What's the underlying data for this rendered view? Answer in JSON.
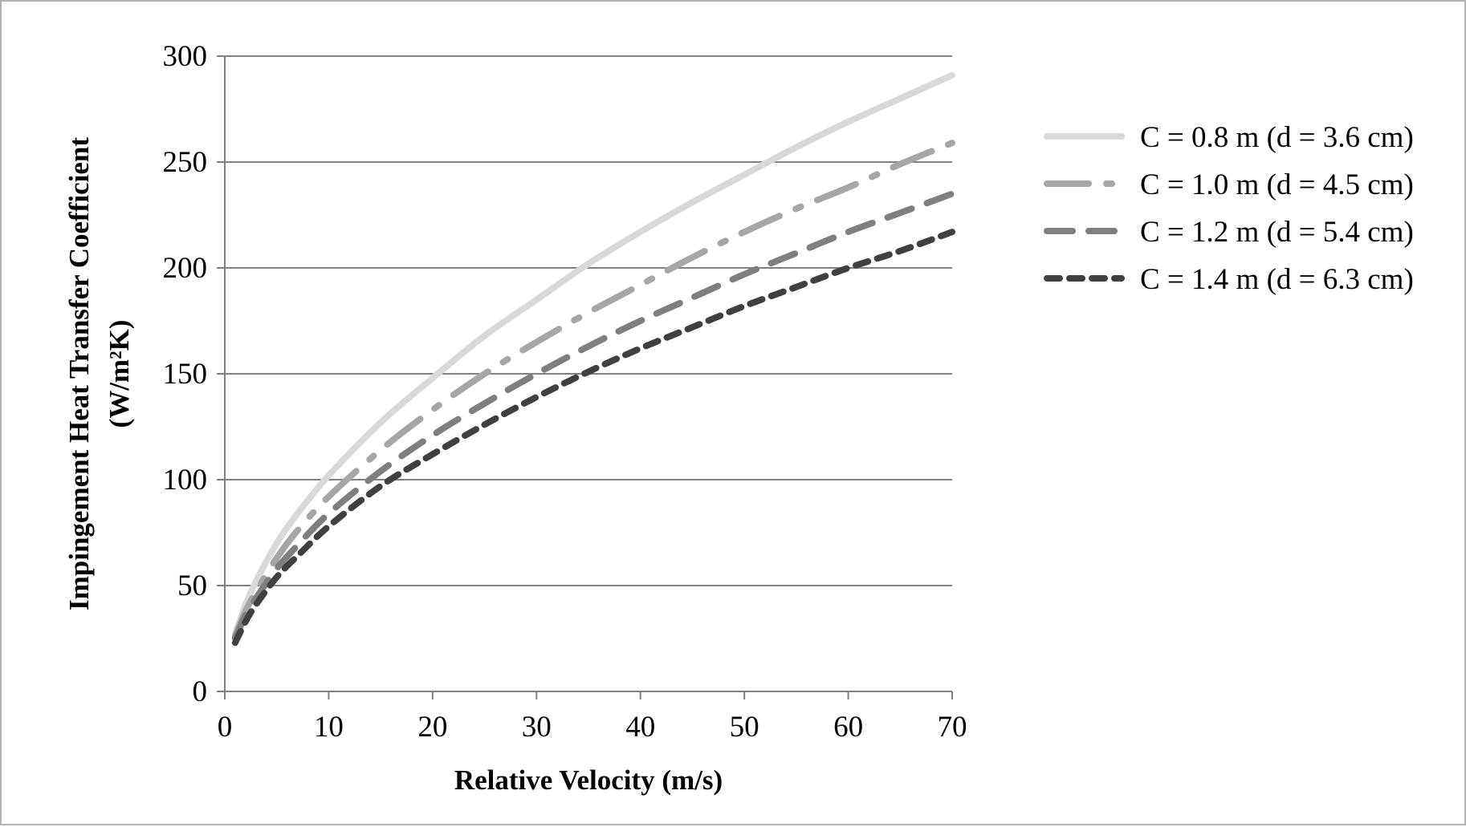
{
  "chart_data": {
    "type": "line",
    "title": "",
    "xlabel": "Relative Velocity (m/s)",
    "ylabel_line1": "Impingement Heat Transfer Coefficient",
    "ylabel_line2": "(W/m²K)",
    "xlim": [
      0,
      70
    ],
    "ylim": [
      0,
      300
    ],
    "xticks": [
      "0",
      "10",
      "20",
      "30",
      "40",
      "50",
      "60",
      "70"
    ],
    "yticks": [
      "0",
      "50",
      "100",
      "150",
      "200",
      "250",
      "300"
    ],
    "grid": "horizontal",
    "legend_position": "right",
    "x": [
      1,
      2,
      3,
      5,
      7,
      10,
      15,
      20,
      25,
      30,
      35,
      40,
      45,
      50,
      55,
      60,
      65,
      70
    ],
    "series": [
      {
        "name": "C = 0.8 m (d = 3.6 cm)",
        "color": "#d9d9d9",
        "dash": "solid",
        "values": [
          27,
          41,
          52,
          70,
          84,
          102,
          127,
          148,
          168,
          185,
          202,
          217,
          231,
          244,
          257,
          269,
          280,
          291
        ]
      },
      {
        "name": "C = 1.0 m (d = 4.5 cm)",
        "color": "#a6a6a6",
        "dash": "long-dash-dot",
        "values": [
          26,
          38,
          47,
          63,
          76,
          92,
          114,
          133,
          150,
          165,
          179,
          192,
          205,
          217,
          228,
          238,
          249,
          259
        ]
      },
      {
        "name": "C = 1.2 m (d = 5.4 cm)",
        "color": "#7f7f7f",
        "dash": "dash",
        "values": [
          25,
          36,
          44,
          58,
          69,
          84,
          104,
          121,
          136,
          150,
          163,
          175,
          186,
          197,
          207,
          217,
          226,
          235
        ]
      },
      {
        "name": "C = 1.4 m (d = 6.3 cm)",
        "color": "#404040",
        "dash": "short-dash",
        "values": [
          23,
          33,
          41,
          54,
          64,
          78,
          97,
          112,
          126,
          139,
          151,
          162,
          172,
          182,
          191,
          200,
          208,
          217
        ]
      }
    ]
  }
}
